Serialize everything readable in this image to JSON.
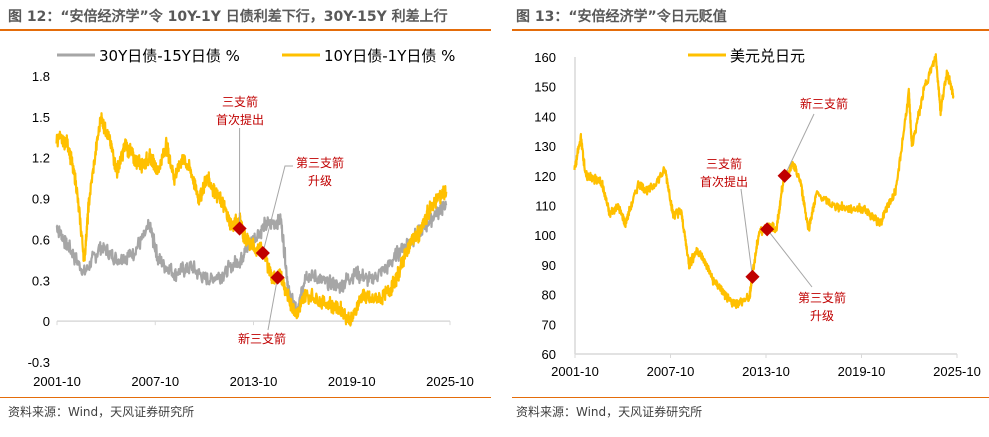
{
  "left": {
    "title": "图 12：“安倍经济学”令 10Y-1Y 日债利差下行，30Y-15Y 利差上行",
    "source": "资料来源：Wind，天风证券研究所"
  },
  "right": {
    "title": "图 13：“安倍经济学”令日元贬值",
    "source": "资料来源：Wind，天风证券研究所"
  },
  "chart_data": [
    {
      "type": "line",
      "title": "",
      "ylim": [
        -0.3,
        1.8
      ],
      "yticks": [
        "1.8",
        "1.5",
        "1.2",
        "0.9",
        "0.6",
        "0.3",
        "0",
        "-0.3"
      ],
      "ytick_values": [
        1.8,
        1.5,
        1.2,
        0.9,
        0.6,
        0.3,
        0,
        -0.3
      ],
      "xticks": [
        "2001-10",
        "2007-10",
        "2013-10",
        "2019-10",
        "2025-10"
      ],
      "xrange": [
        2001.83,
        2025.83
      ],
      "legend": "top",
      "colors": {
        "30Y-15Y": "#A6A6A6",
        "10Y-1Y": "#FFC000",
        "marker": "#C00000"
      },
      "series": [
        {
          "name": "30Y日债-15Y日债 %",
          "color": "#A6A6A6",
          "x": [
            2001.8,
            2002.5,
            2003.5,
            2004.5,
            2005.5,
            2006.5,
            2007.5,
            2008.0,
            2009.0,
            2010.0,
            2011.0,
            2012.0,
            2013.0,
            2013.5,
            2014.5,
            2015.5,
            2016.0,
            2016.5,
            2017.0,
            2018.0,
            2019.0,
            2020.0,
            2021.0,
            2022.0,
            2023.0,
            2024.0,
            2025.0,
            2025.6
          ],
          "y": [
            0.7,
            0.55,
            0.35,
            0.55,
            0.45,
            0.5,
            0.7,
            0.45,
            0.35,
            0.4,
            0.3,
            0.35,
            0.45,
            0.55,
            0.7,
            0.75,
            0.2,
            0.05,
            0.35,
            0.3,
            0.25,
            0.35,
            0.3,
            0.4,
            0.55,
            0.65,
            0.8,
            0.85
          ]
        },
        {
          "name": "10Y日债-1Y日债 %",
          "color": "#FFC000",
          "x": [
            2001.8,
            2002.5,
            2003.0,
            2003.5,
            2003.8,
            2004.5,
            2005.0,
            2005.5,
            2006.0,
            2006.5,
            2007.0,
            2007.5,
            2008.0,
            2008.5,
            2009.0,
            2009.5,
            2010.0,
            2010.5,
            2011.0,
            2011.5,
            2012.0,
            2012.5,
            2013.0,
            2013.3,
            2013.8,
            2014.5,
            2015.0,
            2015.5,
            2016.0,
            2016.5,
            2017.0,
            2018.0,
            2019.0,
            2019.8,
            2020.5,
            2021.0,
            2022.0,
            2022.5,
            2023.0,
            2023.5,
            2024.0,
            2024.5,
            2025.0,
            2025.6
          ],
          "y": [
            1.35,
            1.3,
            1.0,
            0.45,
            0.9,
            1.5,
            1.35,
            1.1,
            1.3,
            1.2,
            1.15,
            1.2,
            1.1,
            1.3,
            1.05,
            1.2,
            1.1,
            0.9,
            1.05,
            0.95,
            0.85,
            0.7,
            0.75,
            0.6,
            0.55,
            0.5,
            0.3,
            0.35,
            0.15,
            0.05,
            0.2,
            0.15,
            0.1,
            0.0,
            0.2,
            0.15,
            0.2,
            0.3,
            0.45,
            0.6,
            0.65,
            0.8,
            0.9,
            0.95
          ]
        }
      ],
      "markers": [
        {
          "x": 2012.98,
          "y": 0.68,
          "label": "三支箭\n首次提出"
        },
        {
          "x": 2014.4,
          "y": 0.5,
          "label": "第三支箭\n升级"
        },
        {
          "x": 2015.3,
          "y": 0.32,
          "label": "新三支箭"
        }
      ]
    },
    {
      "type": "line",
      "title": "",
      "ylim": [
        60,
        160
      ],
      "yticks": [
        "160",
        "150",
        "140",
        "130",
        "120",
        "110",
        "100",
        "90",
        "80",
        "70",
        "60"
      ],
      "ytick_values": [
        160,
        150,
        140,
        130,
        120,
        110,
        100,
        90,
        80,
        70,
        60
      ],
      "xticks": [
        "2001-10",
        "2007-10",
        "2013-10",
        "2019-10",
        "2025-10"
      ],
      "xrange": [
        2001.83,
        2025.83
      ],
      "legend": "top",
      "series": [
        {
          "name": "美元兑日元",
          "color": "#FFC000",
          "x": [
            2001.8,
            2002.2,
            2002.5,
            2003.0,
            2003.5,
            2004.0,
            2004.5,
            2005.0,
            2005.8,
            2006.5,
            2007.5,
            2008.0,
            2008.5,
            2009.0,
            2009.5,
            2010.0,
            2010.5,
            2011.0,
            2011.5,
            2012.0,
            2012.8,
            2012.95,
            2013.4,
            2014.0,
            2014.5,
            2014.9,
            2015.5,
            2016.0,
            2016.5,
            2017.0,
            2018.0,
            2019.0,
            2020.0,
            2021.0,
            2021.5,
            2022.0,
            2022.8,
            2023.0,
            2023.8,
            2024.5,
            2024.8,
            2025.2,
            2025.6
          ],
          "y": [
            122,
            133,
            120,
            119,
            118,
            107,
            110,
            104,
            117,
            115,
            122,
            107,
            108,
            90,
            95,
            91,
            85,
            82,
            78,
            77,
            79,
            86,
            101,
            103,
            102,
            118,
            124,
            118,
            102,
            114,
            110,
            109,
            109,
            104,
            110,
            115,
            148,
            130,
            150,
            160,
            142,
            155,
            147
          ]
        }
      ],
      "markers": [
        {
          "x": 2012.98,
          "y": 86,
          "label": "三支箭\n首次提出"
        },
        {
          "x": 2013.9,
          "y": 102,
          "label": "第三支箭\n升级"
        },
        {
          "x": 2015.0,
          "y": 120,
          "label": "新三支箭"
        }
      ]
    }
  ]
}
